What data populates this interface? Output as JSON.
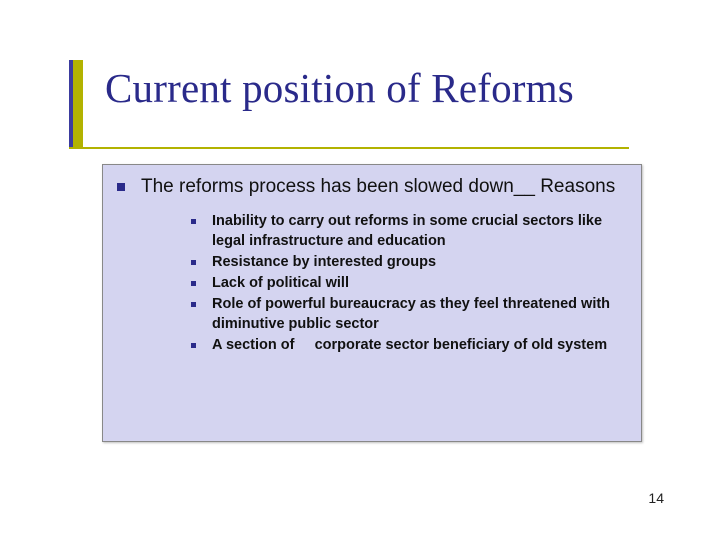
{
  "colors": {
    "accent_yellow": "#b2b200",
    "accent_blue": "#3b3b9e",
    "title_color": "#2a2a8a",
    "box_bg": "#d4d4f0",
    "bullet_color": "#2a2a8a",
    "text_color": "#111111",
    "background": "#ffffff"
  },
  "typography": {
    "title_font": "Times New Roman",
    "title_size_pt": 31,
    "body_font": "Verdana",
    "main_size_pt": 14,
    "sub_size_pt": 11,
    "sub_weight": "bold"
  },
  "title": "Current position of  Reforms",
  "main_point": "The reforms process has been slowed down__ Reasons",
  "sub_points": [
    "Inability to carry out reforms in some crucial sectors like legal infrastructure and education",
    "Resistance by interested groups",
    "Lack of political will",
    "Role of powerful bureaucracy as they feel threatened with diminutive public sector",
    "A section of     corporate sector beneficiary of old system"
  ],
  "page_number": "14"
}
